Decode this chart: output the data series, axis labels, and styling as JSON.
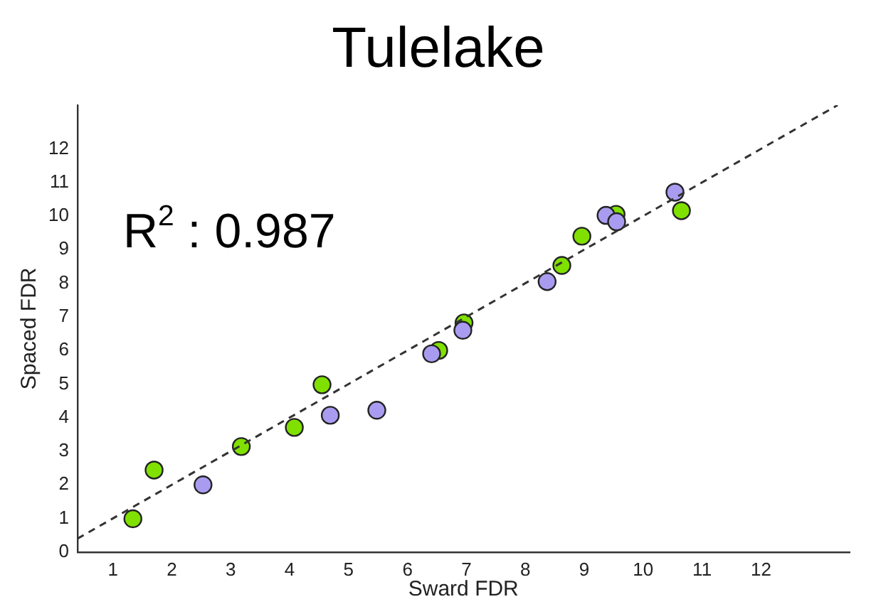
{
  "chart_data": {
    "type": "scatter",
    "title": "Tulelake",
    "xlabel": "Sward FDR",
    "ylabel": "Spaced FDR",
    "annotations": [
      "R$^{2}$ : 0.987"
    ],
    "xlim": [
      0.4,
      13.5
    ],
    "ylim": [
      0,
      13.3
    ],
    "xticks": [
      1,
      2,
      3,
      4,
      5,
      6,
      7,
      8,
      9,
      10,
      11,
      12
    ],
    "yticks": [
      0,
      1,
      2,
      3,
      4,
      5,
      6,
      7,
      8,
      9,
      10,
      11,
      12
    ],
    "grid": false,
    "legend": false,
    "marker": "circle",
    "series": [
      {
        "color": "#80e000",
        "x": [
          1.34,
          1.7,
          3.18,
          4.08,
          4.55,
          6.53,
          6.96,
          8.62,
          8.96,
          9.54,
          10.65
        ],
        "values": [
          0.99,
          2.44,
          3.14,
          3.71,
          4.98,
          6.0,
          6.82,
          8.53,
          9.4,
          10.05,
          10.16
        ]
      },
      {
        "color": "#a99cf0",
        "x": [
          2.53,
          4.69,
          5.48,
          6.41,
          6.94,
          8.37,
          9.37,
          9.55,
          10.54
        ],
        "values": [
          2.0,
          4.07,
          4.22,
          5.9,
          6.6,
          8.05,
          10.02,
          9.83,
          10.71
        ]
      },
      {
        "type": "line",
        "color": "#333333",
        "line_style": "dashed",
        "marker": "none",
        "x": [
          0.4,
          13.3
        ],
        "values": [
          0.4,
          13.3
        ]
      }
    ]
  }
}
